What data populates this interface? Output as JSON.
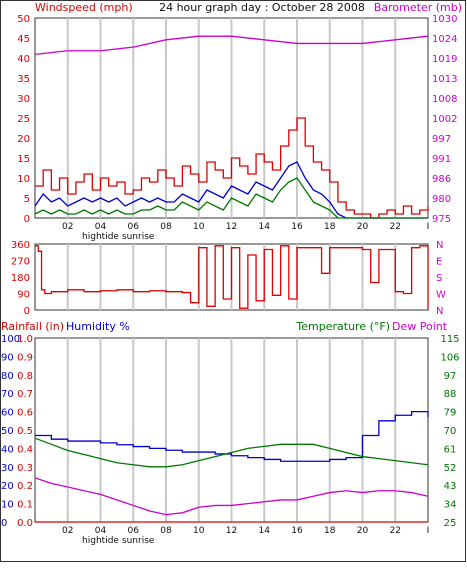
{
  "header": {
    "wind_label": "Windspeed (mph)",
    "title": "24 hour graph day : October 28 2008",
    "baro_label": "Barometer (mb)"
  },
  "bottom_header": {
    "rain_label": "Rainfall (in)",
    "humidity_label": "Humidity %",
    "temp_label": "Temperature (°F)",
    "dew_label": "Dew Point"
  },
  "colors": {
    "red": "#dd0000",
    "blue": "#0000cc",
    "green": "#007700",
    "magenta": "#cc00cc",
    "black": "#111111",
    "grid": "#c8c8c8"
  },
  "x_ticks": [
    "02",
    "04",
    "06",
    "08",
    "10",
    "12",
    "14",
    "16",
    "18",
    "20",
    "22",
    "I"
  ],
  "tide_labels": {
    "hightide": "hightide",
    "sunrise": "sunrise"
  },
  "chart_data": [
    {
      "type": "line",
      "id": "wind_baro",
      "xlim": [
        0,
        24
      ],
      "left_axis": {
        "label": "Windspeed (mph)",
        "ticks": [
          0,
          5,
          10,
          15,
          20,
          25,
          30,
          35,
          40,
          45,
          50
        ],
        "ylim": [
          0,
          50
        ]
      },
      "right_axis": {
        "label": "Barometer (mb)",
        "ticks": [
          975,
          980,
          986,
          991,
          997,
          1002,
          1008,
          1013,
          1019,
          1024,
          1030
        ],
        "ylim": [
          975,
          1030
        ]
      },
      "series": [
        {
          "color": "red",
          "axis": "left",
          "x": [
            0,
            0.5,
            1,
            1.5,
            2,
            2.5,
            3,
            3.5,
            4,
            4.5,
            5,
            5.5,
            6,
            6.5,
            7,
            7.5,
            8,
            8.5,
            9,
            9.5,
            10,
            10.5,
            11,
            11.5,
            12,
            12.5,
            13,
            13.5,
            14,
            14.5,
            15,
            15.5,
            16,
            16.5,
            17,
            17.5,
            18,
            18.5,
            19,
            19.5,
            20,
            20.5,
            21,
            21.5,
            22,
            22.5,
            23,
            23.5,
            24
          ],
          "y": [
            8,
            12,
            7,
            10,
            6,
            9,
            11,
            7,
            10,
            8,
            9,
            6,
            7,
            10,
            9,
            12,
            10,
            8,
            13,
            11,
            9,
            14,
            12,
            10,
            15,
            13,
            11,
            16,
            14,
            12,
            18,
            22,
            25,
            18,
            14,
            12,
            9,
            4,
            2,
            1,
            1,
            0,
            1,
            2,
            1,
            3,
            1,
            2,
            3
          ]
        },
        {
          "color": "blue",
          "axis": "left",
          "x": [
            0,
            0.5,
            1,
            1.5,
            2,
            2.5,
            3,
            3.5,
            4,
            4.5,
            5,
            5.5,
            6,
            6.5,
            7,
            7.5,
            8,
            8.5,
            9,
            9.5,
            10,
            10.5,
            11,
            11.5,
            12,
            12.5,
            13,
            13.5,
            14,
            14.5,
            15,
            15.5,
            16,
            16.5,
            17,
            17.5,
            18,
            18.5,
            19,
            19.5,
            20,
            20.5,
            21,
            21.5,
            22,
            22.5,
            23,
            23.5,
            24
          ],
          "y": [
            3,
            6,
            4,
            5,
            3,
            4,
            5,
            4,
            5,
            4,
            5,
            3,
            4,
            5,
            4,
            5,
            4,
            4,
            6,
            5,
            4,
            7,
            6,
            5,
            8,
            7,
            6,
            9,
            8,
            7,
            10,
            13,
            14,
            10,
            7,
            6,
            4,
            1,
            0,
            0,
            0,
            0,
            0,
            0,
            0,
            0,
            0,
            0,
            0
          ]
        },
        {
          "color": "green",
          "axis": "left",
          "x": [
            0,
            0.5,
            1,
            1.5,
            2,
            2.5,
            3,
            3.5,
            4,
            4.5,
            5,
            5.5,
            6,
            6.5,
            7,
            7.5,
            8,
            8.5,
            9,
            9.5,
            10,
            10.5,
            11,
            11.5,
            12,
            12.5,
            13,
            13.5,
            14,
            14.5,
            15,
            15.5,
            16,
            16.5,
            17,
            17.5,
            18,
            18.5,
            19,
            19.5,
            20,
            20.5,
            21,
            21.5,
            22,
            22.5,
            23,
            23.5,
            24
          ],
          "y": [
            1,
            2,
            1,
            2,
            1,
            1,
            2,
            1,
            2,
            1,
            2,
            1,
            1,
            2,
            2,
            3,
            2,
            2,
            4,
            3,
            2,
            4,
            3,
            2,
            5,
            4,
            3,
            6,
            5,
            4,
            7,
            9,
            10,
            7,
            4,
            3,
            2,
            0,
            0,
            0,
            0,
            0,
            0,
            0,
            0,
            0,
            0,
            0,
            0
          ]
        },
        {
          "color": "magenta",
          "axis": "right",
          "x": [
            0,
            2,
            4,
            6,
            8,
            10,
            12,
            14,
            16,
            18,
            20,
            22,
            24
          ],
          "y": [
            1020,
            1021,
            1021,
            1022,
            1024,
            1025,
            1025,
            1024,
            1023,
            1023,
            1023,
            1024,
            1025
          ]
        }
      ]
    },
    {
      "type": "line",
      "id": "direction",
      "xlim": [
        0,
        24
      ],
      "left_axis": {
        "ticks": [
          0,
          90,
          180,
          270,
          360
        ],
        "ylim": [
          0,
          360
        ]
      },
      "right_axis": {
        "ticks": [
          "N",
          "W",
          "S",
          "E",
          "N"
        ]
      },
      "series": [
        {
          "color": "red",
          "axis": "left",
          "x": [
            0,
            0.2,
            0.4,
            0.6,
            1,
            2,
            3,
            4,
            5,
            6,
            7,
            8,
            9,
            9.5,
            10,
            10.5,
            11,
            11.5,
            12,
            12.5,
            13,
            13.5,
            14,
            14.5,
            15,
            15.5,
            16,
            16.5,
            17,
            17.5,
            18,
            19,
            20,
            20.5,
            21,
            22,
            22.5,
            23,
            23.5,
            24
          ],
          "y": [
            350,
            320,
            110,
            90,
            100,
            110,
            100,
            105,
            110,
            100,
            105,
            100,
            95,
            40,
            340,
            20,
            350,
            60,
            340,
            10,
            300,
            50,
            330,
            80,
            350,
            60,
            340,
            340,
            340,
            200,
            340,
            340,
            330,
            150,
            330,
            100,
            90,
            340,
            350,
            0
          ]
        }
      ]
    },
    {
      "type": "line",
      "id": "temp_humidity_rain",
      "xlim": [
        0,
        24
      ],
      "left_outer_axis": {
        "label": "Rainfall (in)",
        "ticks": [
          "0.0",
          "0.1",
          "0.2",
          "0.3",
          "0.4",
          "0.5",
          "0.6",
          "0.7",
          "0.8",
          "0.9",
          "1.0"
        ]
      },
      "left_inner_axis": {
        "label": "Humidity %",
        "ticks": [
          0,
          10,
          20,
          30,
          40,
          50,
          60,
          70,
          80,
          90,
          100
        ]
      },
      "right_axis": {
        "label": "Temperature (°F)",
        "ticks": [
          25,
          34,
          43,
          52,
          61,
          70,
          79,
          88,
          97,
          106,
          115
        ],
        "ylim": [
          25,
          115
        ]
      },
      "series": [
        {
          "color": "blue",
          "axis": "humidity",
          "x": [
            0,
            1,
            2,
            3,
            4,
            5,
            6,
            7,
            8,
            9,
            10,
            11,
            12,
            13,
            14,
            15,
            16,
            17,
            18,
            19,
            20,
            21,
            22,
            23,
            24
          ],
          "y": [
            47,
            45,
            44,
            44,
            43,
            42,
            41,
            40,
            39,
            38,
            38,
            37,
            36,
            35,
            34,
            33,
            33,
            33,
            34,
            35,
            47,
            55,
            58,
            60,
            57
          ]
        },
        {
          "color": "green",
          "axis": "temperature",
          "x": [
            0,
            1,
            2,
            3,
            4,
            5,
            6,
            7,
            8,
            9,
            10,
            11,
            12,
            13,
            14,
            15,
            16,
            17,
            18,
            19,
            20,
            21,
            22,
            23,
            24
          ],
          "y": [
            66,
            63,
            60,
            58,
            56,
            54,
            53,
            52,
            52,
            53,
            55,
            57,
            59,
            61,
            62,
            63,
            63,
            63,
            61,
            59,
            57,
            56,
            55,
            54,
            53
          ]
        },
        {
          "color": "magenta",
          "axis": "humidity",
          "x": [
            0,
            1,
            2,
            3,
            4,
            5,
            6,
            7,
            8,
            9,
            10,
            11,
            12,
            13,
            14,
            15,
            16,
            17,
            18,
            19,
            20,
            21,
            22,
            23,
            24
          ],
          "y": [
            24,
            21,
            19,
            17,
            15,
            12,
            9,
            6,
            4,
            5,
            8,
            9,
            9,
            10,
            11,
            12,
            12,
            14,
            16,
            17,
            16,
            17,
            17,
            16,
            14
          ]
        },
        {
          "color": "red",
          "axis": "humidity",
          "x": [
            0,
            24
          ],
          "y": [
            0,
            0
          ]
        }
      ]
    }
  ]
}
